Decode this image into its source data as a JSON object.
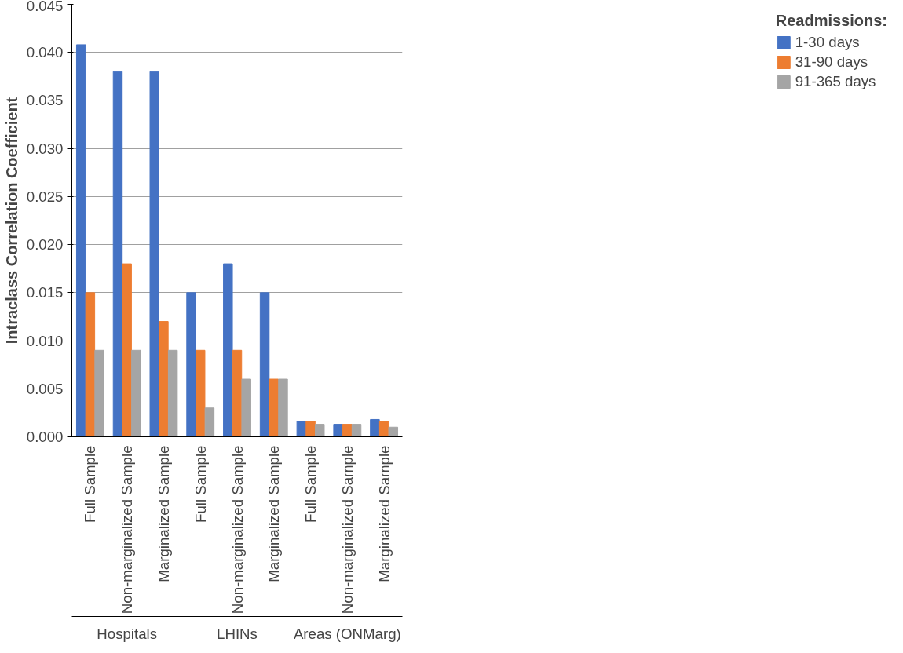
{
  "chart_data": {
    "type": "bar",
    "ylabel": "Intraclass Correlation Coefficient",
    "legend_title": "Readmissions:",
    "categories": [
      "Full Sample",
      "Non-marginalized Sample",
      "Marginalized Sample",
      "Full Sample",
      "Non-marginalized Sample",
      "Marginalized Sample",
      "Full Sample",
      "Non-marginalized Sample",
      "Marginalized Sample"
    ],
    "annotations": [
      "Hospitals",
      "LHINs",
      "Areas (ONMarg)"
    ],
    "series": [
      {
        "name": "1-30 days",
        "color": "#4472c4",
        "values": [
          0.0408,
          0.038,
          0.038,
          0.015,
          0.018,
          0.015,
          0.0016,
          0.0013,
          0.0018
        ]
      },
      {
        "name": "31-90 days",
        "color": "#ed7d31",
        "values": [
          0.015,
          0.018,
          0.012,
          0.009,
          0.009,
          0.006,
          0.0016,
          0.0013,
          0.0016
        ]
      },
      {
        "name": "91-365 days",
        "color": "#a5a5a5",
        "values": [
          0.009,
          0.009,
          0.009,
          0.003,
          0.006,
          0.006,
          0.0013,
          0.0013,
          0.001
        ]
      }
    ],
    "ylim": [
      0,
      0.045
    ],
    "yticks": [
      {
        "value": 0,
        "label": "0.000"
      },
      {
        "value": 0.005,
        "label": "0.005"
      },
      {
        "value": 0.01,
        "label": "0.010"
      },
      {
        "value": 0.015,
        "label": "0.015"
      },
      {
        "value": 0.02,
        "label": "0.020"
      },
      {
        "value": 0.025,
        "label": "0.025"
      },
      {
        "value": 0.03,
        "label": "0.030"
      },
      {
        "value": 0.035,
        "label": "0.035"
      },
      {
        "value": 0.04,
        "label": "0.040"
      },
      {
        "value": 0.045,
        "label": "0.045"
      }
    ],
    "grid": "y",
    "legend": "right"
  }
}
